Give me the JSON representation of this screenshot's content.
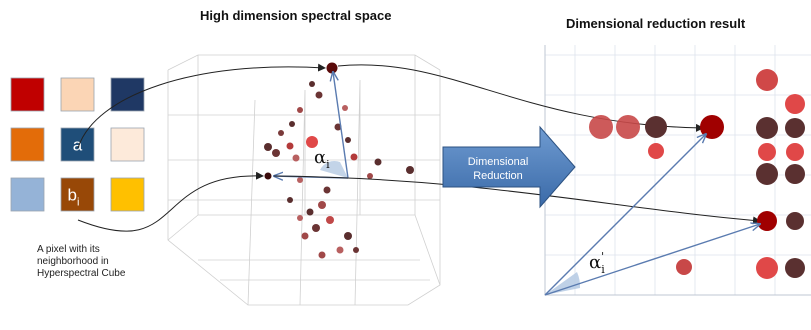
{
  "titles": {
    "left": "High dimension spectral space",
    "right": "Dimensional reduction result"
  },
  "pixel_grid": {
    "caption_lines": [
      "A pixel with its",
      "neighborhood in",
      "Hyperspectral Cube"
    ],
    "cells": [
      {
        "color": "#c00000",
        "label": ""
      },
      {
        "color": "#fbd5b5",
        "label": ""
      },
      {
        "color": "#1f3864",
        "label": ""
      },
      {
        "color": "#e36c09",
        "label": ""
      },
      {
        "color": "#1f4e79",
        "label": "a"
      },
      {
        "color": "#fdeada",
        "label": ""
      },
      {
        "color": "#95b3d7",
        "label": ""
      },
      {
        "color": "#984807",
        "label": "b",
        "subscript": "i"
      },
      {
        "color": "#ffc000",
        "label": ""
      }
    ]
  },
  "reduction_arrow": {
    "label_line1": "Dimensional",
    "label_line2": "Reduction",
    "color": "#4f81bd"
  },
  "angles": {
    "left": {
      "symbol": "α",
      "subscript": "i"
    },
    "right": {
      "symbol": "α",
      "prime": "'",
      "subscript": "i"
    }
  },
  "colors": {
    "point_dark": "#5a2e2e",
    "point_mid": "#a03d3d",
    "point_red": "#e03030",
    "vector": "#5a7bb0",
    "angle_fill": "#b8cce4"
  }
}
